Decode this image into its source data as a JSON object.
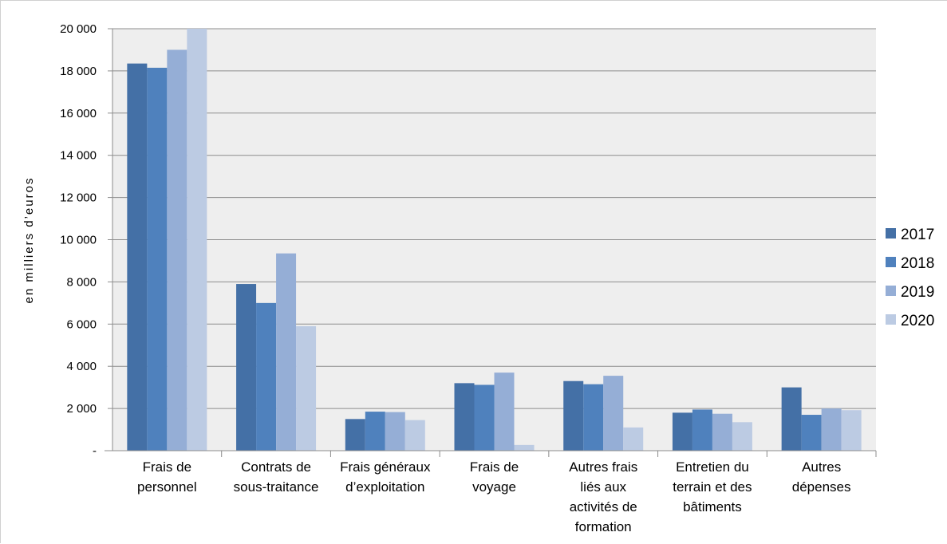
{
  "chart_data": {
    "type": "bar",
    "title": "",
    "xlabel": "",
    "ylabel": "en milliers d’euros",
    "ylim": [
      0,
      20000
    ],
    "y_ticks": [
      0,
      2000,
      4000,
      6000,
      8000,
      10000,
      12000,
      14000,
      16000,
      18000,
      20000
    ],
    "y_tick_labels": [
      "-",
      "2 000",
      "4 000",
      "6 000",
      "8 000",
      "10 000",
      "12 000",
      "14 000",
      "16 000",
      "18 000",
      "20 000"
    ],
    "grid": "horizontal",
    "legend_position": "right",
    "categories": [
      [
        "Frais de",
        "personnel"
      ],
      [
        "Contrats de",
        "sous-traitance"
      ],
      [
        "Frais généraux",
        "d’exploitation"
      ],
      [
        "Frais de",
        "voyage"
      ],
      [
        "Autres frais",
        "liés aux",
        "activités de",
        "formation"
      ],
      [
        "Entretien du",
        "terrain et des",
        "bâtiments"
      ],
      [
        "Autres",
        "dépenses"
      ]
    ],
    "series": [
      {
        "name": "2017",
        "color": "#4470a6",
        "values": [
          18350,
          7900,
          1500,
          3200,
          3300,
          1800,
          3000
        ]
      },
      {
        "name": "2018",
        "color": "#4f81bd",
        "values": [
          18150,
          7000,
          1850,
          3120,
          3150,
          1950,
          1700
        ]
      },
      {
        "name": "2019",
        "color": "#95aed6",
        "values": [
          19000,
          9350,
          1830,
          3700,
          3550,
          1750,
          2000
        ]
      },
      {
        "name": "2020",
        "color": "#bccbe3",
        "values": [
          20000,
          5900,
          1450,
          270,
          1100,
          1350,
          1920
        ]
      }
    ]
  }
}
